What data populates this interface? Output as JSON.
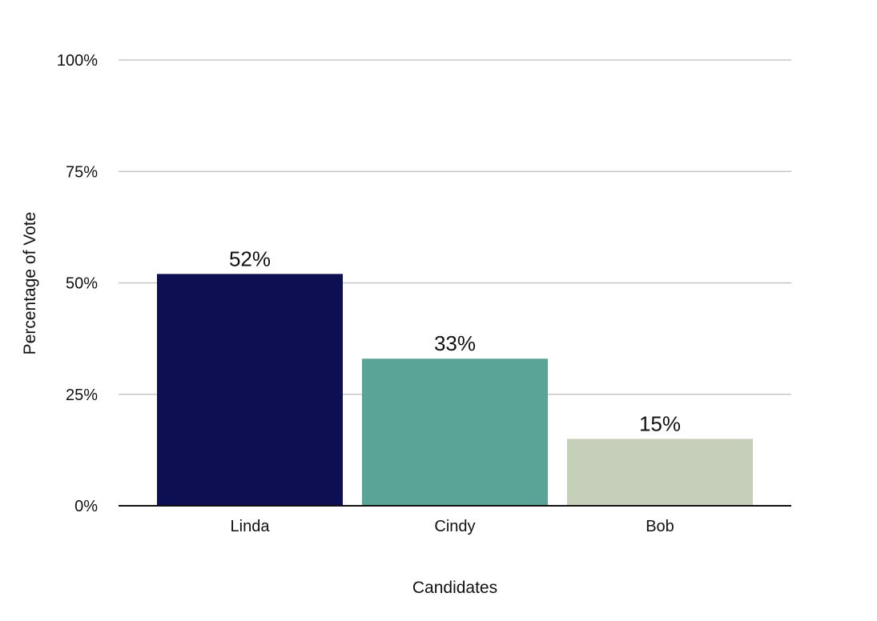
{
  "chart_data": {
    "type": "bar",
    "title": "",
    "xlabel": "Candidates",
    "ylabel": "Percentage of Vote",
    "categories": [
      "Linda",
      "Cindy",
      "Bob"
    ],
    "values": [
      52,
      33,
      15
    ],
    "data_labels": [
      "52%",
      "33%",
      "15%"
    ],
    "colors": [
      "#0e0f52",
      "#5aa497",
      "#c6cfb9"
    ],
    "ylim": [
      0,
      100
    ],
    "yticks": [
      0,
      25,
      50,
      75,
      100
    ],
    "ytick_labels": [
      "0%",
      "25%",
      "50%",
      "75%",
      "100%"
    ],
    "grid": true,
    "legend": "none"
  }
}
